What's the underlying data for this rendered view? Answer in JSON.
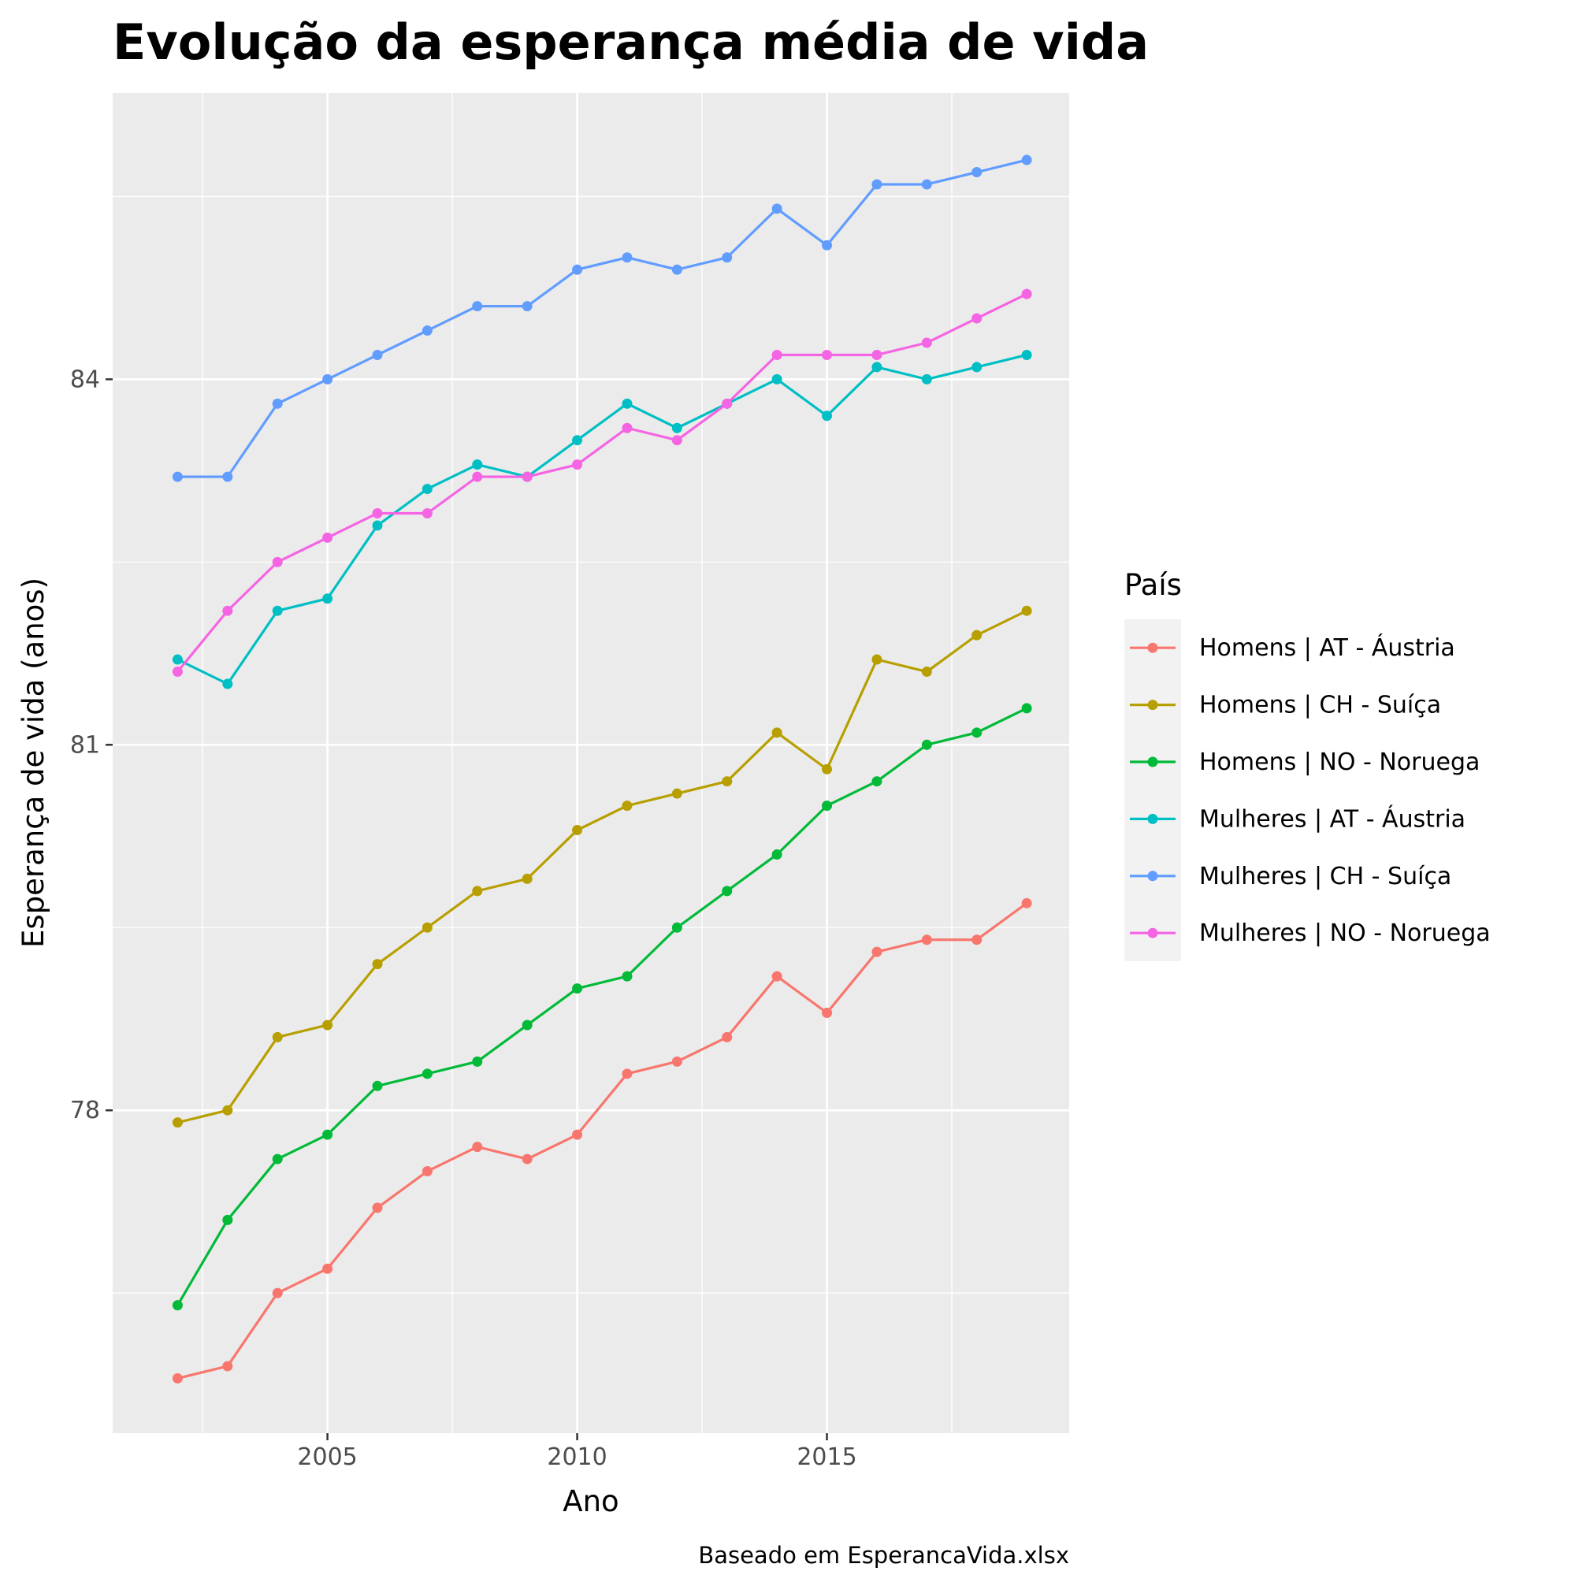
{
  "chart_data": {
    "type": "line",
    "title": "Evolução da esperança média de vida",
    "xlabel": "Ano",
    "ylabel": "Esperança de vida (anos)",
    "caption": "Baseado em EsperancaVida.xlsx",
    "x": [
      2002,
      2003,
      2004,
      2005,
      2006,
      2007,
      2008,
      2009,
      2010,
      2011,
      2012,
      2013,
      2014,
      2015,
      2016,
      2017,
      2018,
      2019
    ],
    "xlim": [
      2000.7,
      2019.85
    ],
    "ylim": [
      75.35,
      86.35
    ],
    "x_ticks": [
      2005,
      2010,
      2015
    ],
    "x_tick_labels": [
      "2005",
      "2010",
      "2015"
    ],
    "y_ticks": [
      78,
      81,
      84
    ],
    "y_tick_labels": [
      "78",
      "81",
      "84"
    ],
    "grid": true,
    "legend": {
      "title": "País",
      "position": "right"
    },
    "series": [
      {
        "name": "Homens | AT - Áustria",
        "color": "#F8766D",
        "values": [
          75.8,
          75.9,
          76.5,
          76.7,
          77.2,
          77.5,
          77.7,
          77.6,
          77.8,
          78.3,
          78.4,
          78.6,
          79.1,
          78.8,
          79.3,
          79.4,
          79.4,
          79.7
        ]
      },
      {
        "name": "Homens | CH - Suíça",
        "color": "#B79F00",
        "values": [
          77.9,
          78.0,
          78.6,
          78.7,
          79.2,
          79.5,
          79.8,
          79.9,
          80.3,
          80.5,
          80.6,
          80.7,
          81.1,
          80.8,
          81.7,
          81.6,
          81.9,
          82.1
        ]
      },
      {
        "name": "Homens | NO - Noruega",
        "color": "#00BA38",
        "values": [
          76.4,
          77.1,
          77.6,
          77.8,
          78.2,
          78.3,
          78.4,
          78.7,
          79.0,
          79.1,
          79.5,
          79.8,
          80.1,
          80.5,
          80.7,
          81.0,
          81.1,
          81.3
        ]
      },
      {
        "name": "Mulheres | AT - Áustria",
        "color": "#00BFC4",
        "values": [
          81.7,
          81.5,
          82.1,
          82.2,
          82.8,
          83.1,
          83.3,
          83.2,
          83.5,
          83.8,
          83.6,
          83.8,
          84.0,
          83.7,
          84.1,
          84.0,
          84.1,
          84.2
        ]
      },
      {
        "name": "Mulheres | CH - Suíça",
        "color": "#619CFF",
        "values": [
          83.2,
          83.2,
          83.8,
          84.0,
          84.2,
          84.4,
          84.6,
          84.6,
          84.9,
          85.0,
          84.9,
          85.0,
          85.4,
          85.1,
          85.6,
          85.6,
          85.7,
          85.8
        ]
      },
      {
        "name": "Mulheres | NO - Noruega",
        "color": "#F564E3",
        "values": [
          81.6,
          82.1,
          82.5,
          82.7,
          82.9,
          82.9,
          83.2,
          83.2,
          83.3,
          83.6,
          83.5,
          83.8,
          84.2,
          84.2,
          84.2,
          84.3,
          84.5,
          84.7
        ]
      }
    ]
  }
}
